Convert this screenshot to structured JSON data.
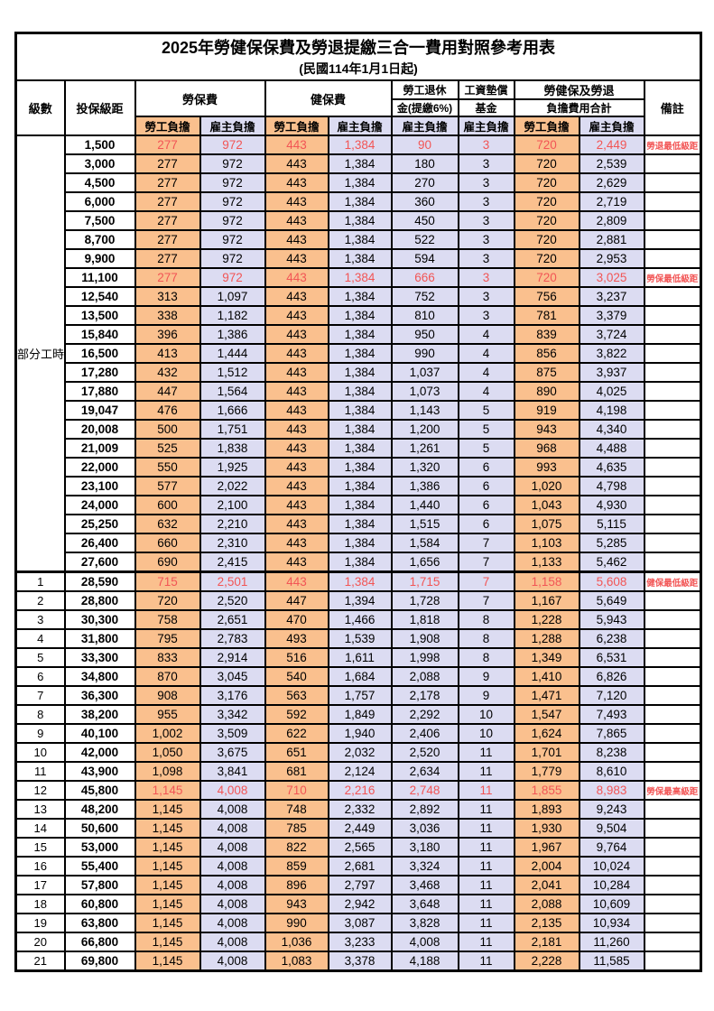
{
  "title": "2025年勞健保保費及勞退提繳三合一費用對照參考用表",
  "subtitle": "(民國114年1月1日起)",
  "header": {
    "level": "級數",
    "bracket": "投保級距",
    "labor_insurance": "勞保費",
    "health_insurance": "健保費",
    "pension_line1": "勞工退休",
    "pension_line2": "金(提繳6%)",
    "wage_fund_line1": "工資墊償",
    "wage_fund_line2": "基金",
    "total_line1": "勞健保及勞退",
    "total_line2": "負擔費用合計",
    "remark": "備註",
    "employee_share": "勞工負擔",
    "employer_share": "雇主負擔"
  },
  "colors": {
    "employee_share_bg": "#FAC08E",
    "employer_share_bg": "#DCDCF2",
    "highlight_value_text": "#F25555",
    "remark_text": "#FF3333",
    "grid_border": "#000000"
  },
  "table": {
    "part_time_label": "部分工時",
    "part_time_rows": [
      {
        "bracket": "1,500",
        "values": [
          "277",
          "972",
          "443",
          "1,384",
          "90",
          "3",
          "720",
          "2,449"
        ],
        "remark": "勞退最低級距",
        "highlight": true
      },
      {
        "bracket": "3,000",
        "values": [
          "277",
          "972",
          "443",
          "1,384",
          "180",
          "3",
          "720",
          "2,539"
        ]
      },
      {
        "bracket": "4,500",
        "values": [
          "277",
          "972",
          "443",
          "1,384",
          "270",
          "3",
          "720",
          "2,629"
        ]
      },
      {
        "bracket": "6,000",
        "values": [
          "277",
          "972",
          "443",
          "1,384",
          "360",
          "3",
          "720",
          "2,719"
        ]
      },
      {
        "bracket": "7,500",
        "values": [
          "277",
          "972",
          "443",
          "1,384",
          "450",
          "3",
          "720",
          "2,809"
        ]
      },
      {
        "bracket": "8,700",
        "values": [
          "277",
          "972",
          "443",
          "1,384",
          "522",
          "3",
          "720",
          "2,881"
        ]
      },
      {
        "bracket": "9,900",
        "values": [
          "277",
          "972",
          "443",
          "1,384",
          "594",
          "3",
          "720",
          "2,953"
        ]
      },
      {
        "bracket": "11,100",
        "values": [
          "277",
          "972",
          "443",
          "1,384",
          "666",
          "3",
          "720",
          "3,025"
        ],
        "remark": "勞保最低級距",
        "highlight": true
      },
      {
        "bracket": "12,540",
        "values": [
          "313",
          "1,097",
          "443",
          "1,384",
          "752",
          "3",
          "756",
          "3,237"
        ]
      },
      {
        "bracket": "13,500",
        "values": [
          "338",
          "1,182",
          "443",
          "1,384",
          "810",
          "3",
          "781",
          "3,379"
        ]
      },
      {
        "bracket": "15,840",
        "values": [
          "396",
          "1,386",
          "443",
          "1,384",
          "950",
          "4",
          "839",
          "3,724"
        ]
      },
      {
        "bracket": "16,500",
        "values": [
          "413",
          "1,444",
          "443",
          "1,384",
          "990",
          "4",
          "856",
          "3,822"
        ]
      },
      {
        "bracket": "17,280",
        "values": [
          "432",
          "1,512",
          "443",
          "1,384",
          "1,037",
          "4",
          "875",
          "3,937"
        ]
      },
      {
        "bracket": "17,880",
        "values": [
          "447",
          "1,564",
          "443",
          "1,384",
          "1,073",
          "4",
          "890",
          "4,025"
        ]
      },
      {
        "bracket": "19,047",
        "values": [
          "476",
          "1,666",
          "443",
          "1,384",
          "1,143",
          "5",
          "919",
          "4,198"
        ]
      },
      {
        "bracket": "20,008",
        "values": [
          "500",
          "1,751",
          "443",
          "1,384",
          "1,200",
          "5",
          "943",
          "4,340"
        ]
      },
      {
        "bracket": "21,009",
        "values": [
          "525",
          "1,838",
          "443",
          "1,384",
          "1,261",
          "5",
          "968",
          "4,488"
        ]
      },
      {
        "bracket": "22,000",
        "values": [
          "550",
          "1,925",
          "443",
          "1,384",
          "1,320",
          "6",
          "993",
          "4,635"
        ]
      },
      {
        "bracket": "23,100",
        "values": [
          "577",
          "2,022",
          "443",
          "1,384",
          "1,386",
          "6",
          "1,020",
          "4,798"
        ]
      },
      {
        "bracket": "24,000",
        "values": [
          "600",
          "2,100",
          "443",
          "1,384",
          "1,440",
          "6",
          "1,043",
          "4,930"
        ]
      },
      {
        "bracket": "25,250",
        "values": [
          "632",
          "2,210",
          "443",
          "1,384",
          "1,515",
          "6",
          "1,075",
          "5,115"
        ]
      },
      {
        "bracket": "26,400",
        "values": [
          "660",
          "2,310",
          "443",
          "1,384",
          "1,584",
          "7",
          "1,103",
          "5,285"
        ]
      },
      {
        "bracket": "27,600",
        "values": [
          "690",
          "2,415",
          "443",
          "1,384",
          "1,656",
          "7",
          "1,133",
          "5,462"
        ]
      }
    ],
    "graded_rows": [
      {
        "level": "1",
        "bracket": "28,590",
        "values": [
          "715",
          "2,501",
          "443",
          "1,384",
          "1,715",
          "7",
          "1,158",
          "5,608"
        ],
        "remark": "健保最低級距",
        "highlight": true
      },
      {
        "level": "2",
        "bracket": "28,800",
        "values": [
          "720",
          "2,520",
          "447",
          "1,394",
          "1,728",
          "7",
          "1,167",
          "5,649"
        ]
      },
      {
        "level": "3",
        "bracket": "30,300",
        "values": [
          "758",
          "2,651",
          "470",
          "1,466",
          "1,818",
          "8",
          "1,228",
          "5,943"
        ]
      },
      {
        "level": "4",
        "bracket": "31,800",
        "values": [
          "795",
          "2,783",
          "493",
          "1,539",
          "1,908",
          "8",
          "1,288",
          "6,238"
        ]
      },
      {
        "level": "5",
        "bracket": "33,300",
        "values": [
          "833",
          "2,914",
          "516",
          "1,611",
          "1,998",
          "8",
          "1,349",
          "6,531"
        ]
      },
      {
        "level": "6",
        "bracket": "34,800",
        "values": [
          "870",
          "3,045",
          "540",
          "1,684",
          "2,088",
          "9",
          "1,410",
          "6,826"
        ]
      },
      {
        "level": "7",
        "bracket": "36,300",
        "values": [
          "908",
          "3,176",
          "563",
          "1,757",
          "2,178",
          "9",
          "1,471",
          "7,120"
        ]
      },
      {
        "level": "8",
        "bracket": "38,200",
        "values": [
          "955",
          "3,342",
          "592",
          "1,849",
          "2,292",
          "10",
          "1,547",
          "7,493"
        ]
      },
      {
        "level": "9",
        "bracket": "40,100",
        "values": [
          "1,002",
          "3,509",
          "622",
          "1,940",
          "2,406",
          "10",
          "1,624",
          "7,865"
        ]
      },
      {
        "level": "10",
        "bracket": "42,000",
        "values": [
          "1,050",
          "3,675",
          "651",
          "2,032",
          "2,520",
          "11",
          "1,701",
          "8,238"
        ]
      },
      {
        "level": "11",
        "bracket": "43,900",
        "values": [
          "1,098",
          "3,841",
          "681",
          "2,124",
          "2,634",
          "11",
          "1,779",
          "8,610"
        ]
      },
      {
        "level": "12",
        "bracket": "45,800",
        "values": [
          "1,145",
          "4,008",
          "710",
          "2,216",
          "2,748",
          "11",
          "1,855",
          "8,983"
        ],
        "remark": "勞保最高級距",
        "highlight": true
      },
      {
        "level": "13",
        "bracket": "48,200",
        "values": [
          "1,145",
          "4,008",
          "748",
          "2,332",
          "2,892",
          "11",
          "1,893",
          "9,243"
        ]
      },
      {
        "level": "14",
        "bracket": "50,600",
        "values": [
          "1,145",
          "4,008",
          "785",
          "2,449",
          "3,036",
          "11",
          "1,930",
          "9,504"
        ]
      },
      {
        "level": "15",
        "bracket": "53,000",
        "values": [
          "1,145",
          "4,008",
          "822",
          "2,565",
          "3,180",
          "11",
          "1,967",
          "9,764"
        ]
      },
      {
        "level": "16",
        "bracket": "55,400",
        "values": [
          "1,145",
          "4,008",
          "859",
          "2,681",
          "3,324",
          "11",
          "2,004",
          "10,024"
        ]
      },
      {
        "level": "17",
        "bracket": "57,800",
        "values": [
          "1,145",
          "4,008",
          "896",
          "2,797",
          "3,468",
          "11",
          "2,041",
          "10,284"
        ]
      },
      {
        "level": "18",
        "bracket": "60,800",
        "values": [
          "1,145",
          "4,008",
          "943",
          "2,942",
          "3,648",
          "11",
          "2,088",
          "10,609"
        ]
      },
      {
        "level": "19",
        "bracket": "63,800",
        "values": [
          "1,145",
          "4,008",
          "990",
          "3,087",
          "3,828",
          "11",
          "2,135",
          "10,934"
        ]
      },
      {
        "level": "20",
        "bracket": "66,800",
        "values": [
          "1,145",
          "4,008",
          "1,036",
          "3,233",
          "4,008",
          "11",
          "2,181",
          "11,260"
        ]
      },
      {
        "level": "21",
        "bracket": "69,800",
        "values": [
          "1,145",
          "4,008",
          "1,083",
          "3,378",
          "4,188",
          "11",
          "2,228",
          "11,585"
        ]
      }
    ]
  }
}
